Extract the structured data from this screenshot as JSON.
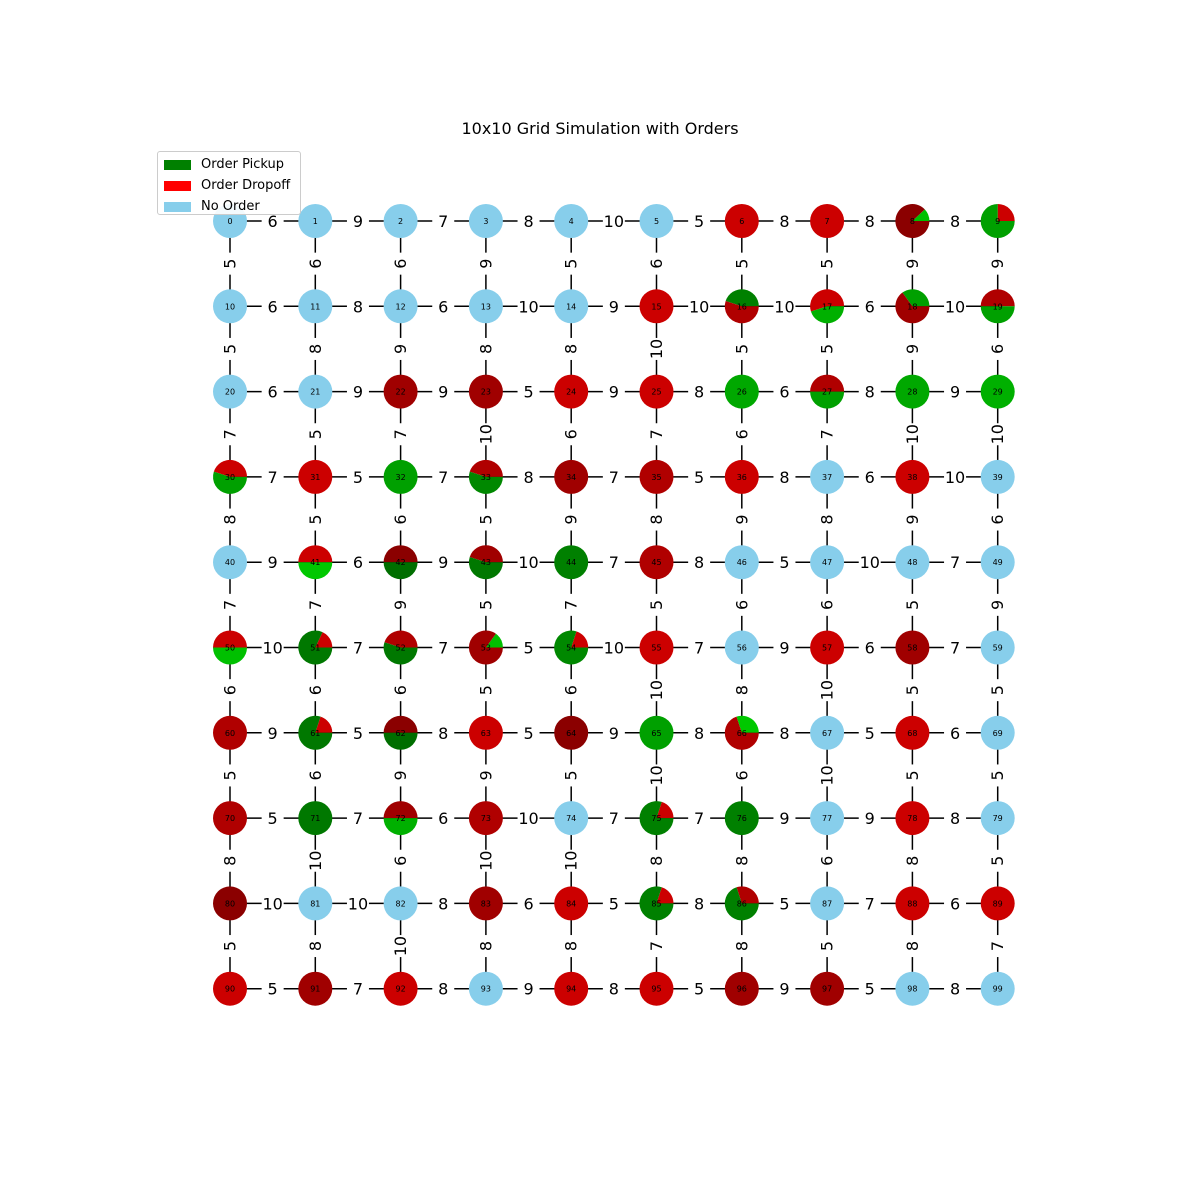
{
  "title": "10x10 Grid Simulation with Orders",
  "legend": [
    {
      "label": "Order Pickup",
      "color": "#008000"
    },
    {
      "label": "Order Dropoff",
      "color": "#ff0000"
    },
    {
      "label": "No Order",
      "color": "#87ceeb"
    }
  ],
  "grid": {
    "rows": 10,
    "cols": 10,
    "horizontal_weights": [
      [
        6,
        9,
        7,
        8,
        10,
        5,
        8,
        8,
        8
      ],
      [
        6,
        8,
        6,
        10,
        9,
        10,
        10,
        6,
        10
      ],
      [
        6,
        9,
        9,
        5,
        9,
        8,
        6,
        8,
        9
      ],
      [
        7,
        5,
        7,
        8,
        7,
        5,
        8,
        6,
        10
      ],
      [
        9,
        6,
        9,
        10,
        7,
        8,
        5,
        10,
        7
      ],
      [
        10,
        7,
        7,
        5,
        10,
        7,
        9,
        6,
        7
      ],
      [
        9,
        5,
        8,
        5,
        9,
        8,
        8,
        5,
        6
      ],
      [
        5,
        7,
        6,
        10,
        7,
        7,
        9,
        9,
        8
      ],
      [
        10,
        10,
        8,
        6,
        5,
        8,
        5,
        7,
        6
      ],
      [
        5,
        7,
        8,
        9,
        8,
        5,
        9,
        5,
        8
      ]
    ],
    "vertical_weights": [
      [
        5,
        6,
        6,
        9,
        5,
        6,
        5,
        5,
        9,
        9
      ],
      [
        5,
        8,
        9,
        8,
        8,
        10,
        5,
        5,
        9,
        6
      ],
      [
        7,
        5,
        7,
        10,
        6,
        7,
        6,
        7,
        10,
        10
      ],
      [
        8,
        5,
        6,
        5,
        9,
        8,
        9,
        8,
        9,
        6
      ],
      [
        7,
        7,
        9,
        5,
        7,
        5,
        6,
        6,
        5,
        9
      ],
      [
        6,
        6,
        6,
        5,
        6,
        10,
        8,
        10,
        5,
        5
      ],
      [
        5,
        6,
        9,
        9,
        5,
        10,
        6,
        10,
        5,
        5
      ],
      [
        8,
        10,
        6,
        10,
        10,
        8,
        8,
        6,
        8,
        5
      ],
      [
        5,
        8,
        10,
        8,
        8,
        7,
        8,
        5,
        8,
        7
      ]
    ]
  },
  "nodes": [
    {
      "id": "0",
      "slices": [
        {
          "value": 1,
          "color": "#87ceeb"
        }
      ]
    },
    {
      "id": "1",
      "slices": [
        {
          "value": 1,
          "color": "#87ceeb"
        }
      ]
    },
    {
      "id": "2",
      "slices": [
        {
          "value": 1,
          "color": "#87ceeb"
        }
      ]
    },
    {
      "id": "3",
      "slices": [
        {
          "value": 1,
          "color": "#87ceeb"
        }
      ]
    },
    {
      "id": "4",
      "slices": [
        {
          "value": 1,
          "color": "#87ceeb"
        }
      ]
    },
    {
      "id": "5",
      "slices": [
        {
          "value": 1,
          "color": "#87ceeb"
        }
      ]
    },
    {
      "id": "6",
      "slices": [
        {
          "value": 1,
          "color": "#cc0000"
        }
      ]
    },
    {
      "id": "7",
      "slices": [
        {
          "value": 1,
          "color": "#cc0000"
        }
      ]
    },
    {
      "id": "8",
      "slices": [
        {
          "value": 0.12,
          "color": "#00c000"
        },
        {
          "value": 0.88,
          "color": "#8b0000"
        }
      ]
    },
    {
      "id": "9",
      "slices": [
        {
          "value": 0.25,
          "color": "#cc0000"
        },
        {
          "value": 0.75,
          "color": "#00a000"
        }
      ]
    },
    {
      "id": "10",
      "slices": [
        {
          "value": 1,
          "color": "#87ceeb"
        }
      ]
    },
    {
      "id": "11",
      "slices": [
        {
          "value": 1,
          "color": "#87ceeb"
        }
      ]
    },
    {
      "id": "12",
      "slices": [
        {
          "value": 1,
          "color": "#87ceeb"
        }
      ]
    },
    {
      "id": "13",
      "slices": [
        {
          "value": 1,
          "color": "#87ceeb"
        }
      ]
    },
    {
      "id": "14",
      "slices": [
        {
          "value": 1,
          "color": "#87ceeb"
        }
      ]
    },
    {
      "id": "15",
      "slices": [
        {
          "value": 1,
          "color": "#cc0000"
        }
      ]
    },
    {
      "id": "16",
      "slices": [
        {
          "value": 0.45,
          "color": "#008000"
        },
        {
          "value": 0.55,
          "color": "#b00000"
        }
      ]
    },
    {
      "id": "17",
      "slices": [
        {
          "value": 0.55,
          "color": "#cc0000"
        },
        {
          "value": 0.45,
          "color": "#00b000"
        }
      ]
    },
    {
      "id": "18",
      "slices": [
        {
          "value": 0.35,
          "color": "#00a000"
        },
        {
          "value": 0.65,
          "color": "#a00000"
        }
      ]
    },
    {
      "id": "19",
      "slices": [
        {
          "value": 0.5,
          "color": "#b00000"
        },
        {
          "value": 0.5,
          "color": "#00a000"
        }
      ]
    },
    {
      "id": "20",
      "slices": [
        {
          "value": 1,
          "color": "#87ceeb"
        }
      ]
    },
    {
      "id": "21",
      "slices": [
        {
          "value": 1,
          "color": "#87ceeb"
        }
      ]
    },
    {
      "id": "22",
      "slices": [
        {
          "value": 1,
          "color": "#a00000"
        }
      ]
    },
    {
      "id": "23",
      "slices": [
        {
          "value": 1,
          "color": "#a00000"
        }
      ]
    },
    {
      "id": "24",
      "slices": [
        {
          "value": 1,
          "color": "#cc0000"
        }
      ]
    },
    {
      "id": "25",
      "slices": [
        {
          "value": 1,
          "color": "#cc0000"
        }
      ]
    },
    {
      "id": "26",
      "slices": [
        {
          "value": 1,
          "color": "#00a800"
        }
      ]
    },
    {
      "id": "27",
      "slices": [
        {
          "value": 0.5,
          "color": "#b00000"
        },
        {
          "value": 0.5,
          "color": "#00a000"
        }
      ]
    },
    {
      "id": "28",
      "slices": [
        {
          "value": 1,
          "color": "#00a800"
        }
      ]
    },
    {
      "id": "29",
      "slices": [
        {
          "value": 1,
          "color": "#00b000"
        }
      ]
    },
    {
      "id": "30",
      "slices": [
        {
          "value": 0.45,
          "color": "#cc0000"
        },
        {
          "value": 0.55,
          "color": "#00a000"
        }
      ]
    },
    {
      "id": "31",
      "slices": [
        {
          "value": 1,
          "color": "#cc0000"
        }
      ]
    },
    {
      "id": "32",
      "slices": [
        {
          "value": 1,
          "color": "#00a000"
        }
      ]
    },
    {
      "id": "33",
      "slices": [
        {
          "value": 0.45,
          "color": "#b00000"
        },
        {
          "value": 0.55,
          "color": "#008800"
        }
      ]
    },
    {
      "id": "34",
      "slices": [
        {
          "value": 1,
          "color": "#a00000"
        }
      ]
    },
    {
      "id": "35",
      "slices": [
        {
          "value": 1,
          "color": "#b00000"
        }
      ]
    },
    {
      "id": "36",
      "slices": [
        {
          "value": 1,
          "color": "#cc0000"
        }
      ]
    },
    {
      "id": "37",
      "slices": [
        {
          "value": 1,
          "color": "#87ceeb"
        }
      ]
    },
    {
      "id": "38",
      "slices": [
        {
          "value": 1,
          "color": "#cc0000"
        }
      ]
    },
    {
      "id": "39",
      "slices": [
        {
          "value": 1,
          "color": "#87ceeb"
        }
      ]
    },
    {
      "id": "40",
      "slices": [
        {
          "value": 1,
          "color": "#87ceeb"
        }
      ]
    },
    {
      "id": "41",
      "slices": [
        {
          "value": 0.5,
          "color": "#cc0000"
        },
        {
          "value": 0.5,
          "color": "#00c800"
        }
      ]
    },
    {
      "id": "42",
      "slices": [
        {
          "value": 0.5,
          "color": "#8b0000"
        },
        {
          "value": 0.5,
          "color": "#006e00"
        }
      ]
    },
    {
      "id": "43",
      "slices": [
        {
          "value": 0.45,
          "color": "#a00000"
        },
        {
          "value": 0.55,
          "color": "#007800"
        }
      ]
    },
    {
      "id": "44",
      "slices": [
        {
          "value": 1,
          "color": "#008000"
        }
      ]
    },
    {
      "id": "45",
      "slices": [
        {
          "value": 1,
          "color": "#b00000"
        }
      ]
    },
    {
      "id": "46",
      "slices": [
        {
          "value": 1,
          "color": "#87ceeb"
        }
      ]
    },
    {
      "id": "47",
      "slices": [
        {
          "value": 1,
          "color": "#87ceeb"
        }
      ]
    },
    {
      "id": "48",
      "slices": [
        {
          "value": 1,
          "color": "#87ceeb"
        }
      ]
    },
    {
      "id": "49",
      "slices": [
        {
          "value": 1,
          "color": "#87ceeb"
        }
      ]
    },
    {
      "id": "50",
      "slices": [
        {
          "value": 0.5,
          "color": "#cc0000"
        },
        {
          "value": 0.5,
          "color": "#00c000"
        }
      ]
    },
    {
      "id": "51",
      "slices": [
        {
          "value": 0.18,
          "color": "#cc0000"
        },
        {
          "value": 0.82,
          "color": "#007800"
        }
      ]
    },
    {
      "id": "52",
      "slices": [
        {
          "value": 0.45,
          "color": "#b00000"
        },
        {
          "value": 0.55,
          "color": "#007800"
        }
      ]
    },
    {
      "id": "53",
      "slices": [
        {
          "value": 0.15,
          "color": "#00c000"
        },
        {
          "value": 0.85,
          "color": "#a00000"
        }
      ]
    },
    {
      "id": "54",
      "slices": [
        {
          "value": 0.2,
          "color": "#cc0000"
        },
        {
          "value": 0.8,
          "color": "#008800"
        }
      ]
    },
    {
      "id": "55",
      "slices": [
        {
          "value": 1,
          "color": "#cc0000"
        }
      ]
    },
    {
      "id": "56",
      "slices": [
        {
          "value": 1,
          "color": "#87ceeb"
        }
      ]
    },
    {
      "id": "57",
      "slices": [
        {
          "value": 1,
          "color": "#cc0000"
        }
      ]
    },
    {
      "id": "58",
      "slices": [
        {
          "value": 1,
          "color": "#a00000"
        }
      ]
    },
    {
      "id": "59",
      "slices": [
        {
          "value": 1,
          "color": "#87ceeb"
        }
      ]
    },
    {
      "id": "60",
      "slices": [
        {
          "value": 1,
          "color": "#b00000"
        }
      ]
    },
    {
      "id": "61",
      "slices": [
        {
          "value": 0.2,
          "color": "#cc0000"
        },
        {
          "value": 0.8,
          "color": "#007800"
        }
      ]
    },
    {
      "id": "62",
      "slices": [
        {
          "value": 0.5,
          "color": "#8b0000"
        },
        {
          "value": 0.5,
          "color": "#006e00"
        }
      ]
    },
    {
      "id": "63",
      "slices": [
        {
          "value": 1,
          "color": "#cc0000"
        }
      ]
    },
    {
      "id": "64",
      "slices": [
        {
          "value": 1,
          "color": "#8b0000"
        }
      ]
    },
    {
      "id": "65",
      "slices": [
        {
          "value": 1,
          "color": "#00a000"
        }
      ]
    },
    {
      "id": "66",
      "slices": [
        {
          "value": 0.3,
          "color": "#00c800"
        },
        {
          "value": 0.7,
          "color": "#b00000"
        }
      ]
    },
    {
      "id": "67",
      "slices": [
        {
          "value": 1,
          "color": "#87ceeb"
        }
      ]
    },
    {
      "id": "68",
      "slices": [
        {
          "value": 1,
          "color": "#cc0000"
        }
      ]
    },
    {
      "id": "69",
      "slices": [
        {
          "value": 1,
          "color": "#87ceeb"
        }
      ]
    },
    {
      "id": "70",
      "slices": [
        {
          "value": 1,
          "color": "#b00000"
        }
      ]
    },
    {
      "id": "71",
      "slices": [
        {
          "value": 1,
          "color": "#007800"
        }
      ]
    },
    {
      "id": "72",
      "slices": [
        {
          "value": 0.5,
          "color": "#a00000"
        },
        {
          "value": 0.5,
          "color": "#00b000"
        }
      ]
    },
    {
      "id": "73",
      "slices": [
        {
          "value": 1,
          "color": "#b00000"
        }
      ]
    },
    {
      "id": "74",
      "slices": [
        {
          "value": 1,
          "color": "#87ceeb"
        }
      ]
    },
    {
      "id": "75",
      "slices": [
        {
          "value": 0.2,
          "color": "#cc0000"
        },
        {
          "value": 0.8,
          "color": "#008000"
        }
      ]
    },
    {
      "id": "76",
      "slices": [
        {
          "value": 1,
          "color": "#008000"
        }
      ]
    },
    {
      "id": "77",
      "slices": [
        {
          "value": 1,
          "color": "#87ceeb"
        }
      ]
    },
    {
      "id": "78",
      "slices": [
        {
          "value": 1,
          "color": "#cc0000"
        }
      ]
    },
    {
      "id": "79",
      "slices": [
        {
          "value": 1,
          "color": "#87ceeb"
        }
      ]
    },
    {
      "id": "80",
      "slices": [
        {
          "value": 1,
          "color": "#8b0000"
        }
      ]
    },
    {
      "id": "81",
      "slices": [
        {
          "value": 1,
          "color": "#87ceeb"
        }
      ]
    },
    {
      "id": "82",
      "slices": [
        {
          "value": 1,
          "color": "#87ceeb"
        }
      ]
    },
    {
      "id": "83",
      "slices": [
        {
          "value": 1,
          "color": "#a00000"
        }
      ]
    },
    {
      "id": "84",
      "slices": [
        {
          "value": 1,
          "color": "#cc0000"
        }
      ]
    },
    {
      "id": "85",
      "slices": [
        {
          "value": 0.2,
          "color": "#cc0000"
        },
        {
          "value": 0.8,
          "color": "#008000"
        }
      ]
    },
    {
      "id": "86",
      "slices": [
        {
          "value": 0.3,
          "color": "#b00000"
        },
        {
          "value": 0.7,
          "color": "#008000"
        }
      ]
    },
    {
      "id": "87",
      "slices": [
        {
          "value": 1,
          "color": "#87ceeb"
        }
      ]
    },
    {
      "id": "88",
      "slices": [
        {
          "value": 1,
          "color": "#cc0000"
        }
      ]
    },
    {
      "id": "89",
      "slices": [
        {
          "value": 1,
          "color": "#cc0000"
        }
      ]
    },
    {
      "id": "90",
      "slices": [
        {
          "value": 1,
          "color": "#cc0000"
        }
      ]
    },
    {
      "id": "91",
      "slices": [
        {
          "value": 1,
          "color": "#a00000"
        }
      ]
    },
    {
      "id": "92",
      "slices": [
        {
          "value": 1,
          "color": "#cc0000"
        }
      ]
    },
    {
      "id": "93",
      "slices": [
        {
          "value": 1,
          "color": "#87ceeb"
        }
      ]
    },
    {
      "id": "94",
      "slices": [
        {
          "value": 1,
          "color": "#cc0000"
        }
      ]
    },
    {
      "id": "95",
      "slices": [
        {
          "value": 1,
          "color": "#cc0000"
        }
      ]
    },
    {
      "id": "96",
      "slices": [
        {
          "value": 1,
          "color": "#a00000"
        }
      ]
    },
    {
      "id": "97",
      "slices": [
        {
          "value": 1,
          "color": "#a00000"
        }
      ]
    },
    {
      "id": "98",
      "slices": [
        {
          "value": 1,
          "color": "#87ceeb"
        }
      ]
    },
    {
      "id": "99",
      "slices": [
        {
          "value": 1,
          "color": "#87ceeb"
        }
      ]
    }
  ]
}
